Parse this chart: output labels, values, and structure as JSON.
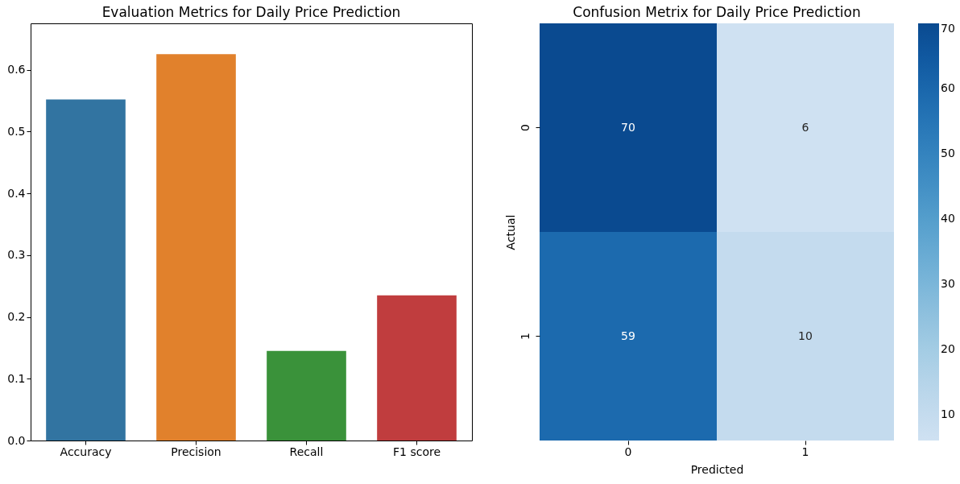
{
  "chart_data": [
    {
      "type": "bar",
      "title": "Evaluation Metrics for Daily Price Prediction",
      "categories": [
        "Accuracy",
        "Precision",
        "Recall",
        "F1 score"
      ],
      "values": [
        0.552,
        0.625,
        0.145,
        0.235
      ],
      "colors": [
        "#3274a1",
        "#e1812c",
        "#3a923a",
        "#c03d3e"
      ],
      "ylim": [
        0,
        0.675
      ],
      "yticks": [
        {
          "value": 0,
          "label": "0.0"
        },
        0.1,
        0.2,
        0.3,
        0.4,
        0.5,
        0.6
      ],
      "grid": false,
      "legend": false
    },
    {
      "type": "heatmap",
      "title": "Confusion Metrix for Daily Price Prediction",
      "categories": [
        "0",
        "1"
      ],
      "y_categories": [
        "0",
        "1"
      ],
      "cells": [
        [
          70,
          6
        ],
        [
          59,
          10
        ]
      ],
      "data_labels": true,
      "xlabel": "Predicted",
      "ylabel": "Actual",
      "clim": [
        6,
        70
      ],
      "cticks": [
        10,
        20,
        30,
        40,
        50,
        60,
        70
      ]
    }
  ]
}
